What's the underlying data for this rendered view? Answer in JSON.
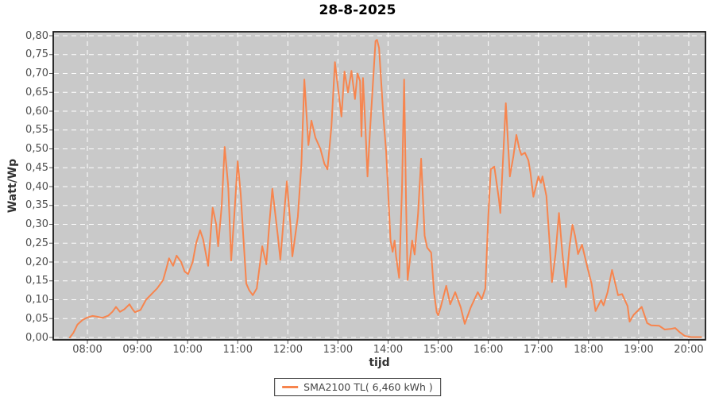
{
  "title": "28-8-2025",
  "colors": {
    "plot_background": "#c9c9c9",
    "gridline": "#ffffff",
    "series_line": "#f7854e",
    "plot_border": "#1a1a1a",
    "tick_mark": "#555555",
    "tick_text": "#4d4d4d"
  },
  "legend": {
    "entries": [
      {
        "label": "SMA2100 TL( 6,460 kWh )",
        "color": "#f7854e"
      }
    ]
  },
  "chart_data": {
    "type": "line",
    "title": "28-8-2025",
    "xlabel": "tijd",
    "ylabel": "Watt/Wp",
    "grid": true,
    "legend_position": "bottom",
    "ylim": [
      0,
      0.8
    ],
    "y_tick_values": [
      0,
      0.05,
      0.1,
      0.15,
      0.2,
      0.25,
      0.3,
      0.35,
      0.4,
      0.45,
      0.5,
      0.55,
      0.6,
      0.65,
      0.7,
      0.75,
      0.8
    ],
    "y_tick_labels": [
      "0,00",
      "0,05",
      "0,10",
      "0,15",
      "0,20",
      "0,25",
      "0,30",
      "0,35",
      "0,40",
      "0,45",
      "0,50",
      "0,55",
      "0,60",
      "0,65",
      "0,70",
      "0,75",
      "0,80"
    ],
    "x_tick_hours": [
      8,
      9,
      10,
      11,
      12,
      13,
      14,
      15,
      16,
      17,
      18,
      19,
      20
    ],
    "x_tick_labels": [
      "08:00",
      "09:00",
      "10:00",
      "11:00",
      "12:00",
      "13:00",
      "14:00",
      "15:00",
      "16:00",
      "17:00",
      "18:00",
      "19:00",
      "20:00"
    ],
    "series": [
      {
        "name": "SMA2100 TL( 6,460 kWh )",
        "color": "#f7854e",
        "points": [
          [
            7.65,
            0.0
          ],
          [
            7.72,
            0.012
          ],
          [
            7.8,
            0.034
          ],
          [
            7.9,
            0.046
          ],
          [
            8.0,
            0.053
          ],
          [
            8.1,
            0.057
          ],
          [
            8.2,
            0.055
          ],
          [
            8.3,
            0.052
          ],
          [
            8.42,
            0.058
          ],
          [
            8.5,
            0.068
          ],
          [
            8.57,
            0.081
          ],
          [
            8.65,
            0.068
          ],
          [
            8.74,
            0.075
          ],
          [
            8.84,
            0.088
          ],
          [
            8.9,
            0.075
          ],
          [
            8.95,
            0.067
          ],
          [
            9.06,
            0.073
          ],
          [
            9.17,
            0.1
          ],
          [
            9.28,
            0.115
          ],
          [
            9.39,
            0.13
          ],
          [
            9.51,
            0.152
          ],
          [
            9.58,
            0.185
          ],
          [
            9.63,
            0.21
          ],
          [
            9.71,
            0.19
          ],
          [
            9.78,
            0.217
          ],
          [
            9.87,
            0.2
          ],
          [
            9.94,
            0.175
          ],
          [
            10.01,
            0.168
          ],
          [
            10.1,
            0.2
          ],
          [
            10.17,
            0.25
          ],
          [
            10.25,
            0.284
          ],
          [
            10.31,
            0.26
          ],
          [
            10.41,
            0.19
          ],
          [
            10.5,
            0.344
          ],
          [
            10.57,
            0.3
          ],
          [
            10.61,
            0.242
          ],
          [
            10.68,
            0.35
          ],
          [
            10.74,
            0.505
          ],
          [
            10.81,
            0.4
          ],
          [
            10.87,
            0.204
          ],
          [
            10.93,
            0.32
          ],
          [
            11.0,
            0.467
          ],
          [
            11.06,
            0.38
          ],
          [
            11.12,
            0.25
          ],
          [
            11.17,
            0.143
          ],
          [
            11.23,
            0.125
          ],
          [
            11.3,
            0.112
          ],
          [
            11.38,
            0.13
          ],
          [
            11.49,
            0.242
          ],
          [
            11.57,
            0.194
          ],
          [
            11.63,
            0.3
          ],
          [
            11.69,
            0.394
          ],
          [
            11.8,
            0.27
          ],
          [
            11.85,
            0.206
          ],
          [
            11.92,
            0.32
          ],
          [
            11.98,
            0.414
          ],
          [
            12.05,
            0.3
          ],
          [
            12.09,
            0.215
          ],
          [
            12.2,
            0.32
          ],
          [
            12.27,
            0.46
          ],
          [
            12.33,
            0.684
          ],
          [
            12.41,
            0.51
          ],
          [
            12.47,
            0.575
          ],
          [
            12.55,
            0.53
          ],
          [
            12.65,
            0.5
          ],
          [
            12.73,
            0.46
          ],
          [
            12.79,
            0.446
          ],
          [
            12.87,
            0.56
          ],
          [
            12.94,
            0.73
          ],
          [
            13.02,
            0.64
          ],
          [
            13.07,
            0.586
          ],
          [
            13.13,
            0.705
          ],
          [
            13.2,
            0.65
          ],
          [
            13.27,
            0.707
          ],
          [
            13.34,
            0.632
          ],
          [
            13.39,
            0.7
          ],
          [
            13.44,
            0.68
          ],
          [
            13.47,
            0.533
          ],
          [
            13.5,
            0.688
          ],
          [
            13.55,
            0.55
          ],
          [
            13.59,
            0.427
          ],
          [
            13.64,
            0.55
          ],
          [
            13.71,
            0.7
          ],
          [
            13.75,
            0.786
          ],
          [
            13.78,
            0.789
          ],
          [
            13.82,
            0.768
          ],
          [
            13.91,
            0.579
          ],
          [
            13.96,
            0.495
          ],
          [
            14.05,
            0.257
          ],
          [
            14.09,
            0.227
          ],
          [
            14.13,
            0.257
          ],
          [
            14.16,
            0.215
          ],
          [
            14.22,
            0.158
          ],
          [
            14.28,
            0.4
          ],
          [
            14.32,
            0.684
          ],
          [
            14.36,
            0.35
          ],
          [
            14.39,
            0.152
          ],
          [
            14.48,
            0.257
          ],
          [
            14.53,
            0.22
          ],
          [
            14.6,
            0.33
          ],
          [
            14.66,
            0.474
          ],
          [
            14.73,
            0.27
          ],
          [
            14.78,
            0.238
          ],
          [
            14.86,
            0.225
          ],
          [
            14.92,
            0.116
          ],
          [
            14.97,
            0.067
          ],
          [
            15.0,
            0.059
          ],
          [
            15.05,
            0.08
          ],
          [
            15.16,
            0.137
          ],
          [
            15.24,
            0.088
          ],
          [
            15.34,
            0.12
          ],
          [
            15.45,
            0.08
          ],
          [
            15.53,
            0.036
          ],
          [
            15.65,
            0.08
          ],
          [
            15.79,
            0.12
          ],
          [
            15.87,
            0.101
          ],
          [
            15.94,
            0.13
          ],
          [
            16.0,
            0.32
          ],
          [
            16.05,
            0.446
          ],
          [
            16.12,
            0.453
          ],
          [
            16.21,
            0.368
          ],
          [
            16.24,
            0.33
          ],
          [
            16.35,
            0.621
          ],
          [
            16.43,
            0.427
          ],
          [
            16.5,
            0.48
          ],
          [
            16.56,
            0.537
          ],
          [
            16.62,
            0.5
          ],
          [
            16.66,
            0.484
          ],
          [
            16.73,
            0.49
          ],
          [
            16.8,
            0.47
          ],
          [
            16.84,
            0.438
          ],
          [
            16.9,
            0.373
          ],
          [
            17.0,
            0.427
          ],
          [
            17.05,
            0.41
          ],
          [
            17.08,
            0.427
          ],
          [
            17.16,
            0.375
          ],
          [
            17.22,
            0.257
          ],
          [
            17.27,
            0.147
          ],
          [
            17.34,
            0.22
          ],
          [
            17.41,
            0.33
          ],
          [
            17.48,
            0.22
          ],
          [
            17.55,
            0.133
          ],
          [
            17.62,
            0.24
          ],
          [
            17.68,
            0.299
          ],
          [
            17.73,
            0.27
          ],
          [
            17.79,
            0.221
          ],
          [
            17.87,
            0.246
          ],
          [
            17.98,
            0.185
          ],
          [
            18.06,
            0.143
          ],
          [
            18.14,
            0.07
          ],
          [
            18.25,
            0.099
          ],
          [
            18.3,
            0.085
          ],
          [
            18.38,
            0.12
          ],
          [
            18.47,
            0.179
          ],
          [
            18.59,
            0.112
          ],
          [
            18.67,
            0.115
          ],
          [
            18.78,
            0.083
          ],
          [
            18.82,
            0.042
          ],
          [
            18.9,
            0.06
          ],
          [
            19.06,
            0.081
          ],
          [
            19.17,
            0.038
          ],
          [
            19.25,
            0.032
          ],
          [
            19.41,
            0.031
          ],
          [
            19.52,
            0.021
          ],
          [
            19.65,
            0.023
          ],
          [
            19.73,
            0.025
          ],
          [
            19.81,
            0.015
          ],
          [
            19.92,
            0.004
          ],
          [
            20.05,
            0.001
          ],
          [
            20.25,
            0.001
          ]
        ]
      }
    ]
  }
}
